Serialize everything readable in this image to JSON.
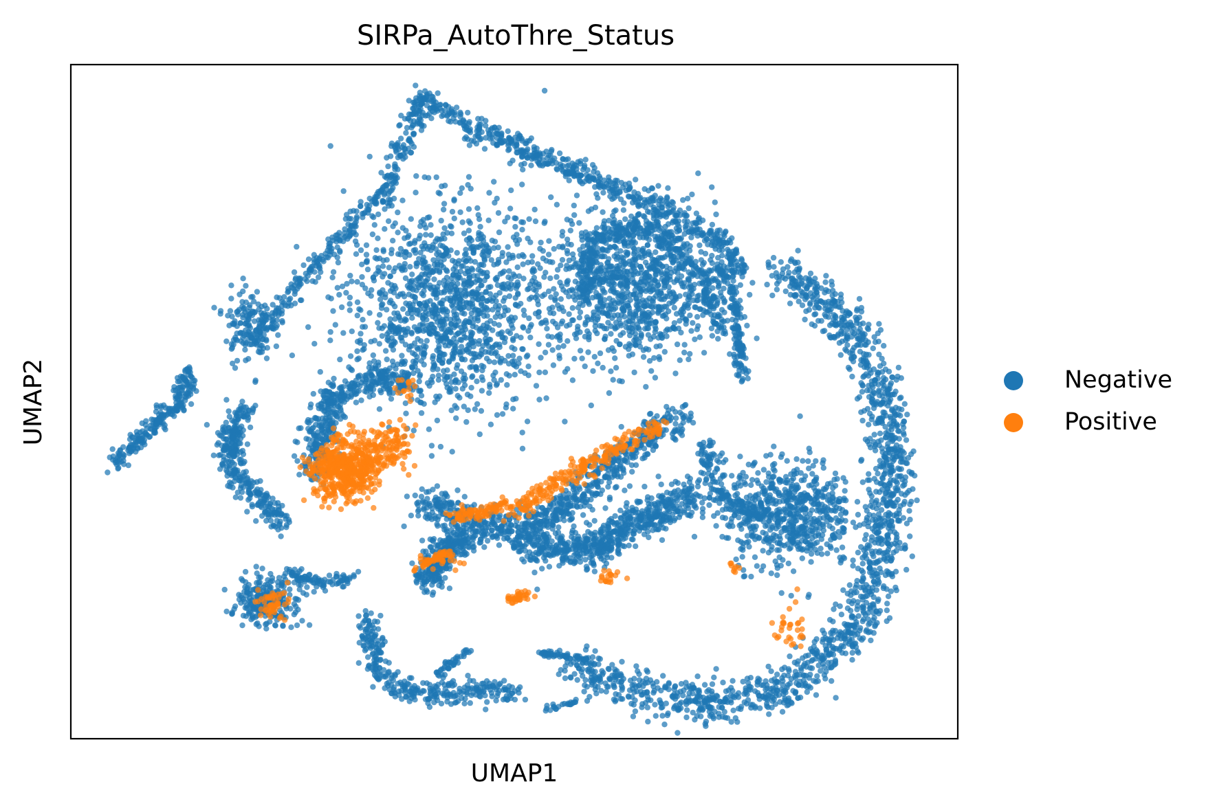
{
  "chart_data": {
    "type": "scatter",
    "title": "SIRPa_AutoThre_Status",
    "xlabel": "UMAP1",
    "ylabel": "UMAP2",
    "xlim": [
      -10,
      13
    ],
    "ylim": [
      -8,
      12
    ],
    "ticks": "none",
    "grid": false,
    "legend": {
      "placement": "right",
      "entries": [
        {
          "name": "Negative",
          "color": "#1f77b4"
        },
        {
          "name": "Positive",
          "color": "#ff7f0e"
        }
      ]
    },
    "series": [
      {
        "name": "Negative",
        "color": "#1f77b4",
        "clusters": [
          {
            "shape": "stroke",
            "path": [
              [
                -8.9,
                0.2
              ],
              [
                -7.2,
                1.9
              ],
              [
                -6.9,
                2.9
              ]
            ],
            "spread": 0.25,
            "weight": 240
          },
          {
            "shape": "stroke",
            "path": [
              [
                -5.3,
                3.7
              ],
              [
                -3.8,
                5.9
              ],
              [
                -1.8,
                8.3
              ],
              [
                -0.9,
                11.1
              ]
            ],
            "spread": 0.3,
            "weight": 360
          },
          {
            "shape": "stroke",
            "path": [
              [
                -0.9,
                11.1
              ],
              [
                0.5,
                10.0
              ],
              [
                2.5,
                9.1
              ],
              [
                4.2,
                8.3
              ],
              [
                5.6,
                7.6
              ],
              [
                6.8,
                6.8
              ],
              [
                7.4,
                5.7
              ]
            ],
            "spread": 0.35,
            "weight": 560
          },
          {
            "shape": "stroke",
            "path": [
              [
                -5.5,
                1.8
              ],
              [
                -5.9,
                0.9
              ],
              [
                -5.6,
                -0.4
              ],
              [
                -4.5,
                -1.6
              ]
            ],
            "spread": 0.35,
            "weight": 330
          },
          {
            "shape": "stroke",
            "path": [
              [
                -3.7,
                -0.2
              ],
              [
                -3.3,
                2.1
              ],
              [
                -2.2,
                2.6
              ],
              [
                -1.3,
                2.7
              ]
            ],
            "spread": 0.45,
            "weight": 420
          },
          {
            "shape": "blob",
            "center": [
              -0.2,
              4.8
            ],
            "rx": 2.6,
            "ry": 3.0,
            "weight": 1300
          },
          {
            "shape": "blob",
            "center": [
              4.6,
              5.5
            ],
            "rx": 2.1,
            "ry": 2.4,
            "weight": 1000
          },
          {
            "shape": "stroke",
            "path": [
              [
                3.3,
                5.0
              ],
              [
                3.6,
                7.0
              ],
              [
                5.0,
                7.2
              ],
              [
                6.5,
                5.6
              ],
              [
                6.9,
                4.0
              ]
            ],
            "spread": 0.3,
            "weight": 380
          },
          {
            "shape": "blob",
            "center": [
              -5.4,
              4.3
            ],
            "rx": 0.6,
            "ry": 1.1,
            "weight": 140
          },
          {
            "shape": "stroke",
            "path": [
              [
                6.8,
                6.0
              ],
              [
                7.2,
                5.2
              ],
              [
                7.4,
                2.6
              ]
            ],
            "spread": 0.15,
            "weight": 150
          },
          {
            "shape": "stroke",
            "path": [
              [
                8.4,
                5.9
              ],
              [
                9.9,
                4.6
              ],
              [
                10.9,
                2.8
              ],
              [
                11.3,
                0.3
              ],
              [
                11.0,
                -2.8
              ],
              [
                10.2,
                -5.0
              ],
              [
                8.6,
                -6.5
              ],
              [
                6.4,
                -7.0
              ],
              [
                4.2,
                -6.4
              ],
              [
                3.0,
                -5.8
              ]
            ],
            "spread": 0.6,
            "weight": 1500
          },
          {
            "shape": "blob",
            "center": [
              8.6,
              -1.3
            ],
            "rx": 1.7,
            "ry": 1.6,
            "weight": 650
          },
          {
            "shape": "stroke",
            "path": [
              [
                -0.8,
                -1.0
              ],
              [
                1.1,
                -1.9
              ],
              [
                2.7,
                -1.3
              ],
              [
                4.2,
                0.3
              ],
              [
                5.8,
                1.6
              ]
            ],
            "spread": 0.5,
            "weight": 750
          },
          {
            "shape": "stroke",
            "path": [
              [
                1.8,
                -2.2
              ],
              [
                3.6,
                -2.4
              ],
              [
                5.0,
                -1.3
              ],
              [
                6.1,
                -0.9
              ]
            ],
            "spread": 0.55,
            "weight": 650
          },
          {
            "shape": "stroke",
            "path": [
              [
                -0.8,
                -3.4
              ],
              [
                -0.3,
                -2.3
              ],
              [
                0.3,
                -2.1
              ]
            ],
            "spread": 0.4,
            "weight": 280
          },
          {
            "shape": "stroke",
            "path": [
              [
                -2.3,
                -4.4
              ],
              [
                -2.1,
                -6.0
              ],
              [
                -1.1,
                -6.7
              ],
              [
                0.8,
                -6.5
              ],
              [
                1.6,
                -6.7
              ]
            ],
            "spread": 0.35,
            "weight": 320
          },
          {
            "shape": "stroke",
            "path": [
              [
                -0.6,
                -6.2
              ],
              [
                0.3,
                -5.4
              ]
            ],
            "spread": 0.12,
            "weight": 40
          },
          {
            "shape": "stroke",
            "path": [
              [
                2.1,
                -5.4
              ],
              [
                3.4,
                -5.7
              ]
            ],
            "spread": 0.12,
            "weight": 50
          },
          {
            "shape": "stroke",
            "path": [
              [
                2.3,
                -7.1
              ],
              [
                3.5,
                -6.8
              ]
            ],
            "spread": 0.1,
            "weight": 25
          },
          {
            "shape": "blob",
            "center": [
              -4.9,
              -3.9
            ],
            "rx": 0.8,
            "ry": 0.7,
            "weight": 260
          },
          {
            "shape": "stroke",
            "path": [
              [
                -4.4,
                -3.1
              ],
              [
                -3.4,
                -3.4
              ],
              [
                -2.7,
                -3.2
              ]
            ],
            "spread": 0.2,
            "weight": 90
          },
          {
            "shape": "stroke",
            "path": [
              [
                6.4,
                0.8
              ],
              [
                6.8,
                -0.8
              ],
              [
                7.9,
                -1.4
              ]
            ],
            "spread": 0.3,
            "weight": 160
          },
          {
            "shape": "stroke",
            "path": [
              [
                2.8,
                8.8
              ],
              [
                3.6,
                8.6
              ]
            ],
            "spread": 0.08,
            "weight": 20
          }
        ]
      },
      {
        "name": "Positive",
        "color": "#ff7f0e",
        "clusters": [
          {
            "shape": "blob",
            "center": [
              -2.9,
              0.0
            ],
            "rx": 0.9,
            "ry": 0.9,
            "weight": 500
          },
          {
            "shape": "blob",
            "center": [
              -1.8,
              0.7
            ],
            "rx": 0.6,
            "ry": 0.6,
            "weight": 120
          },
          {
            "shape": "stroke",
            "path": [
              [
                1.4,
                -1.3
              ],
              [
                2.8,
                -0.3
              ],
              [
                4.0,
                0.5
              ],
              [
                5.3,
                1.3
              ]
            ],
            "spread": 0.3,
            "weight": 230
          },
          {
            "shape": "stroke",
            "path": [
              [
                -0.1,
                -1.4
              ],
              [
                0.6,
                -1.3
              ],
              [
                1.3,
                -1.0
              ]
            ],
            "spread": 0.2,
            "weight": 90
          },
          {
            "shape": "stroke",
            "path": [
              [
                -1.1,
                -3.0
              ],
              [
                -0.2,
                -2.4
              ]
            ],
            "spread": 0.1,
            "weight": 40
          },
          {
            "shape": "blob",
            "center": [
              -4.8,
              -4.0
            ],
            "rx": 0.6,
            "ry": 0.5,
            "weight": 50
          },
          {
            "shape": "blob",
            "center": [
              1.6,
              -3.8
            ],
            "rx": 0.35,
            "ry": 0.2,
            "weight": 35
          },
          {
            "shape": "blob",
            "center": [
              -0.4,
              -2.7
            ],
            "rx": 0.4,
            "ry": 0.3,
            "weight": 25
          },
          {
            "shape": "blob",
            "center": [
              -1.3,
              2.4
            ],
            "rx": 0.25,
            "ry": 0.5,
            "weight": 15
          },
          {
            "shape": "blob",
            "center": [
              8.6,
              -4.6
            ],
            "rx": 0.6,
            "ry": 0.9,
            "weight": 30
          },
          {
            "shape": "blob",
            "center": [
              4.0,
              -3.2
            ],
            "rx": 0.35,
            "ry": 0.2,
            "weight": 18
          },
          {
            "shape": "blob",
            "center": [
              7.2,
              -2.9
            ],
            "rx": 0.2,
            "ry": 0.15,
            "weight": 8
          }
        ]
      }
    ]
  }
}
